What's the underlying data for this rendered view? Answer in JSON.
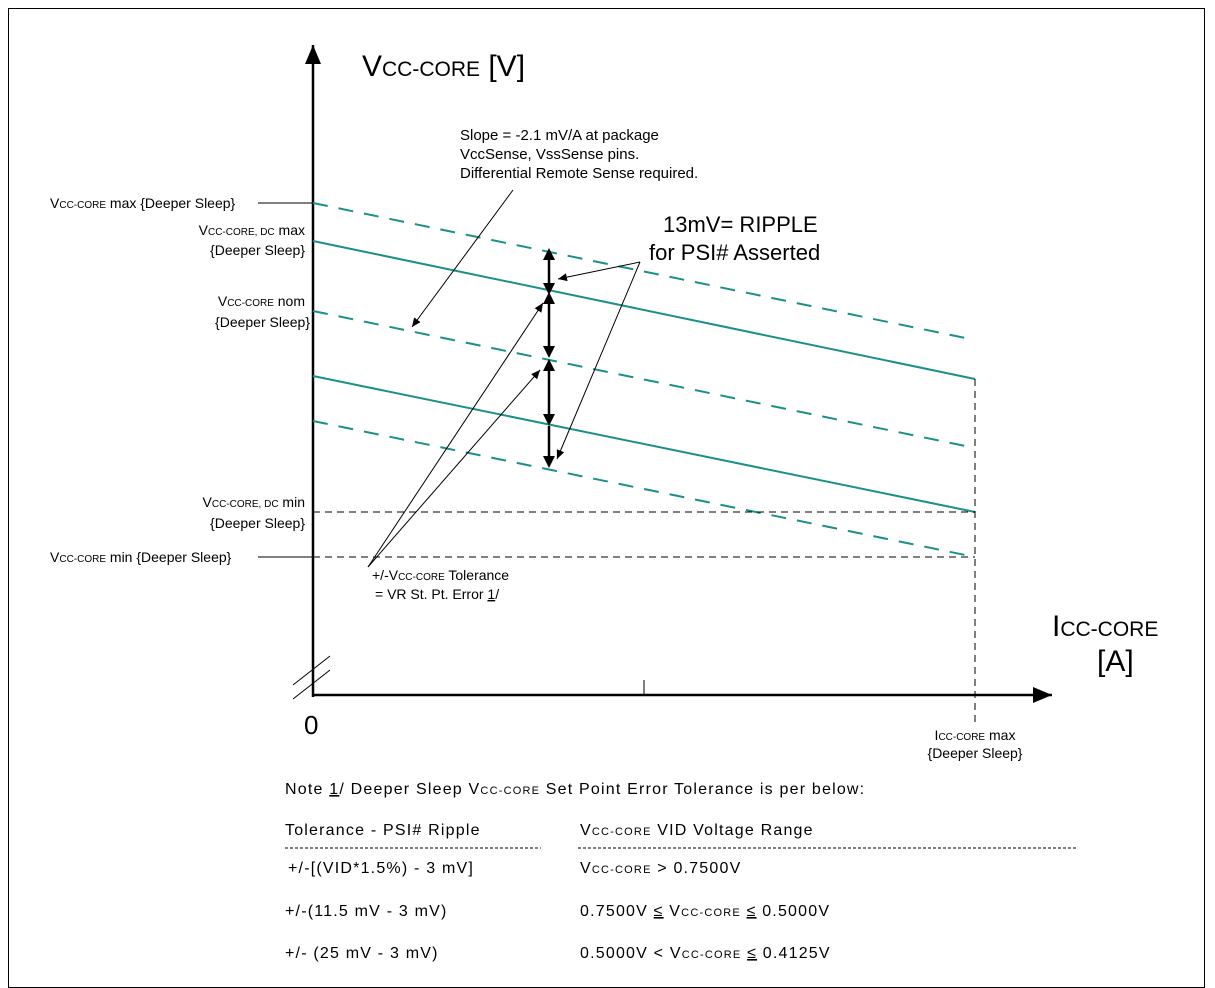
{
  "y_axis": {
    "label_main": "V",
    "label_sub": "CC-CORE",
    "label_unit": " [V]"
  },
  "x_axis": {
    "label_main": "I",
    "label_sub": "CC-CORE",
    "label_unit": "[A]",
    "origin": "0"
  },
  "y_labels": {
    "vmax": {
      "main": "V",
      "sub": "CC-CORE",
      "rest": " max {Deeper Sleep}"
    },
    "vdcmax": {
      "main": "V",
      "sub": "CC-CORE, DC",
      "rest": " max",
      "line2": "{Deeper Sleep}"
    },
    "vnom": {
      "main": "V",
      "sub": "CC-CORE",
      "rest": " nom",
      "line2": "{Deeper Sleep}"
    },
    "vdcmin": {
      "main": "V",
      "sub": "CC-CORE, DC",
      "rest": " min",
      "line2": "{Deeper Sleep}"
    },
    "vmin": {
      "main": "V",
      "sub": "CC-CORE",
      "rest": " min {Deeper Sleep}"
    }
  },
  "imax_label": {
    "main": "I",
    "sub": "CC-CORE",
    "rest": " max",
    "line2": "{Deeper Sleep}"
  },
  "slope_note": {
    "line1": "Slope = -2.1 mV/A at package",
    "line2": "VccSense, VssSense pins.",
    "line3": "Differential Remote Sense required."
  },
  "ripple_note": {
    "line1": "13mV= RIPPLE",
    "line2": "for PSI# Asserted"
  },
  "tolerance_note": {
    "prefix": "+/-V",
    "sub": "CC-CORE",
    "rest": " Tolerance",
    "line2_pre": "= VR St. Pt. Error ",
    "line2_ref": "1",
    "line2_post": "/"
  },
  "footnote": {
    "pre": "Note ",
    "ref": "1",
    "mid": "/  Deeper Sleep V",
    "sub": "CC-CORE",
    "post": " Set Point Error Tolerance is per below:"
  },
  "table": {
    "col1_header": "Tolerance - PSI# Ripple",
    "col2_header_main": "V",
    "col2_header_sub": "CC-CORE",
    "col2_header_rest": " VID Voltage Range",
    "rows": [
      {
        "tolerance": "+/-[(VID*1.5%) - 3 mV]",
        "r_a": "",
        "r_sub": "CC-CORE",
        "r_b": " > 0.7500V",
        "r_v": "V"
      },
      {
        "tolerance": "+/-(11.5 mV - 3 mV)",
        "r_a": "0.7500V ",
        "r_sub": "CC-CORE",
        "r_b": " ",
        "r_v": "V",
        "r_c": "0.5000V"
      },
      {
        "tolerance": "+/- (25 mV - 3 mV)",
        "r_a": "0.5000V < ",
        "r_sub": "CC-CORE",
        "r_b": " ",
        "r_v": "V",
        "r_c": "0.4125V"
      }
    ],
    "le_symbol": "≤"
  },
  "colors": {
    "load_line": "#1b9087",
    "ink": "#000000"
  }
}
